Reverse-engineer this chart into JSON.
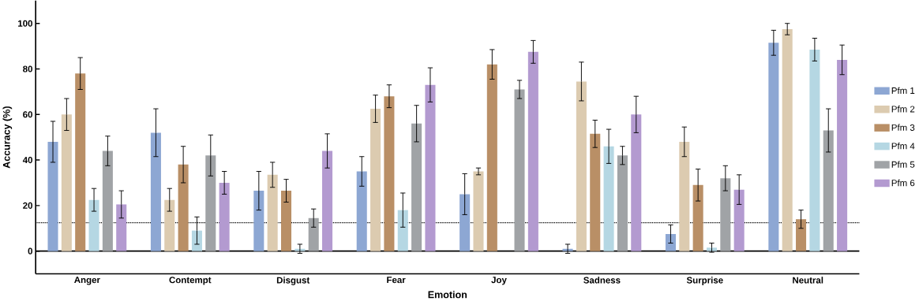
{
  "chart_data": {
    "type": "bar",
    "xlabel": "Emotion",
    "ylabel": "Accuracy (%)",
    "categories": [
      "Anger",
      "Contempt",
      "Disgust",
      "Fear",
      "Joy",
      "Sadness",
      "Surprise",
      "Neutral"
    ],
    "series": [
      {
        "name": "Pfm 1",
        "color": "#8da7d3",
        "values": [
          48,
          52,
          26.5,
          35,
          25,
          1,
          7.5,
          91.5
        ],
        "errors": [
          9,
          10.5,
          8.5,
          6.5,
          9,
          2,
          4,
          5.5
        ]
      },
      {
        "name": "Pfm 2",
        "color": "#dccbb0",
        "values": [
          60,
          22.5,
          33.5,
          62.5,
          35,
          74.5,
          48,
          97.5
        ],
        "errors": [
          7,
          5,
          5.5,
          6,
          1.5,
          8.5,
          6.5,
          2.5
        ]
      },
      {
        "name": "Pfm 3",
        "color": "#b98f66",
        "values": [
          78,
          38,
          26.5,
          68,
          82,
          51.5,
          29,
          14
        ],
        "errors": [
          7,
          8,
          5,
          5,
          6.5,
          6,
          7,
          4
        ]
      },
      {
        "name": "Pfm 4",
        "color": "#b5d7e3",
        "values": [
          22.5,
          9,
          1,
          18,
          null,
          46,
          1.5,
          88.5
        ],
        "errors": [
          5,
          6,
          2,
          7.5,
          null,
          7.5,
          2,
          5
        ]
      },
      {
        "name": "Pfm 5",
        "color": "#a0a3a6",
        "values": [
          44,
          42,
          14.5,
          56,
          71,
          42,
          32,
          53
        ],
        "errors": [
          6.5,
          9,
          4,
          8,
          4,
          4,
          5.5,
          9.5
        ]
      },
      {
        "name": "Pfm 6",
        "color": "#b39ad0",
        "values": [
          20.5,
          30,
          44,
          73,
          87.5,
          60,
          27,
          84
        ],
        "errors": [
          6,
          5,
          7.5,
          7.5,
          5,
          8,
          6.5,
          6.5
        ]
      }
    ],
    "ylim": [
      -10,
      110
    ],
    "yticks": [
      0,
      20,
      40,
      60,
      80,
      100
    ],
    "grid": false,
    "legend": "right",
    "ref_lines": [
      {
        "axis": "y",
        "value": 0,
        "line_style": "solid",
        "color": "#000000"
      },
      {
        "axis": "y",
        "value": 12.5,
        "line_style": "dotted",
        "color": "#000000"
      }
    ]
  }
}
